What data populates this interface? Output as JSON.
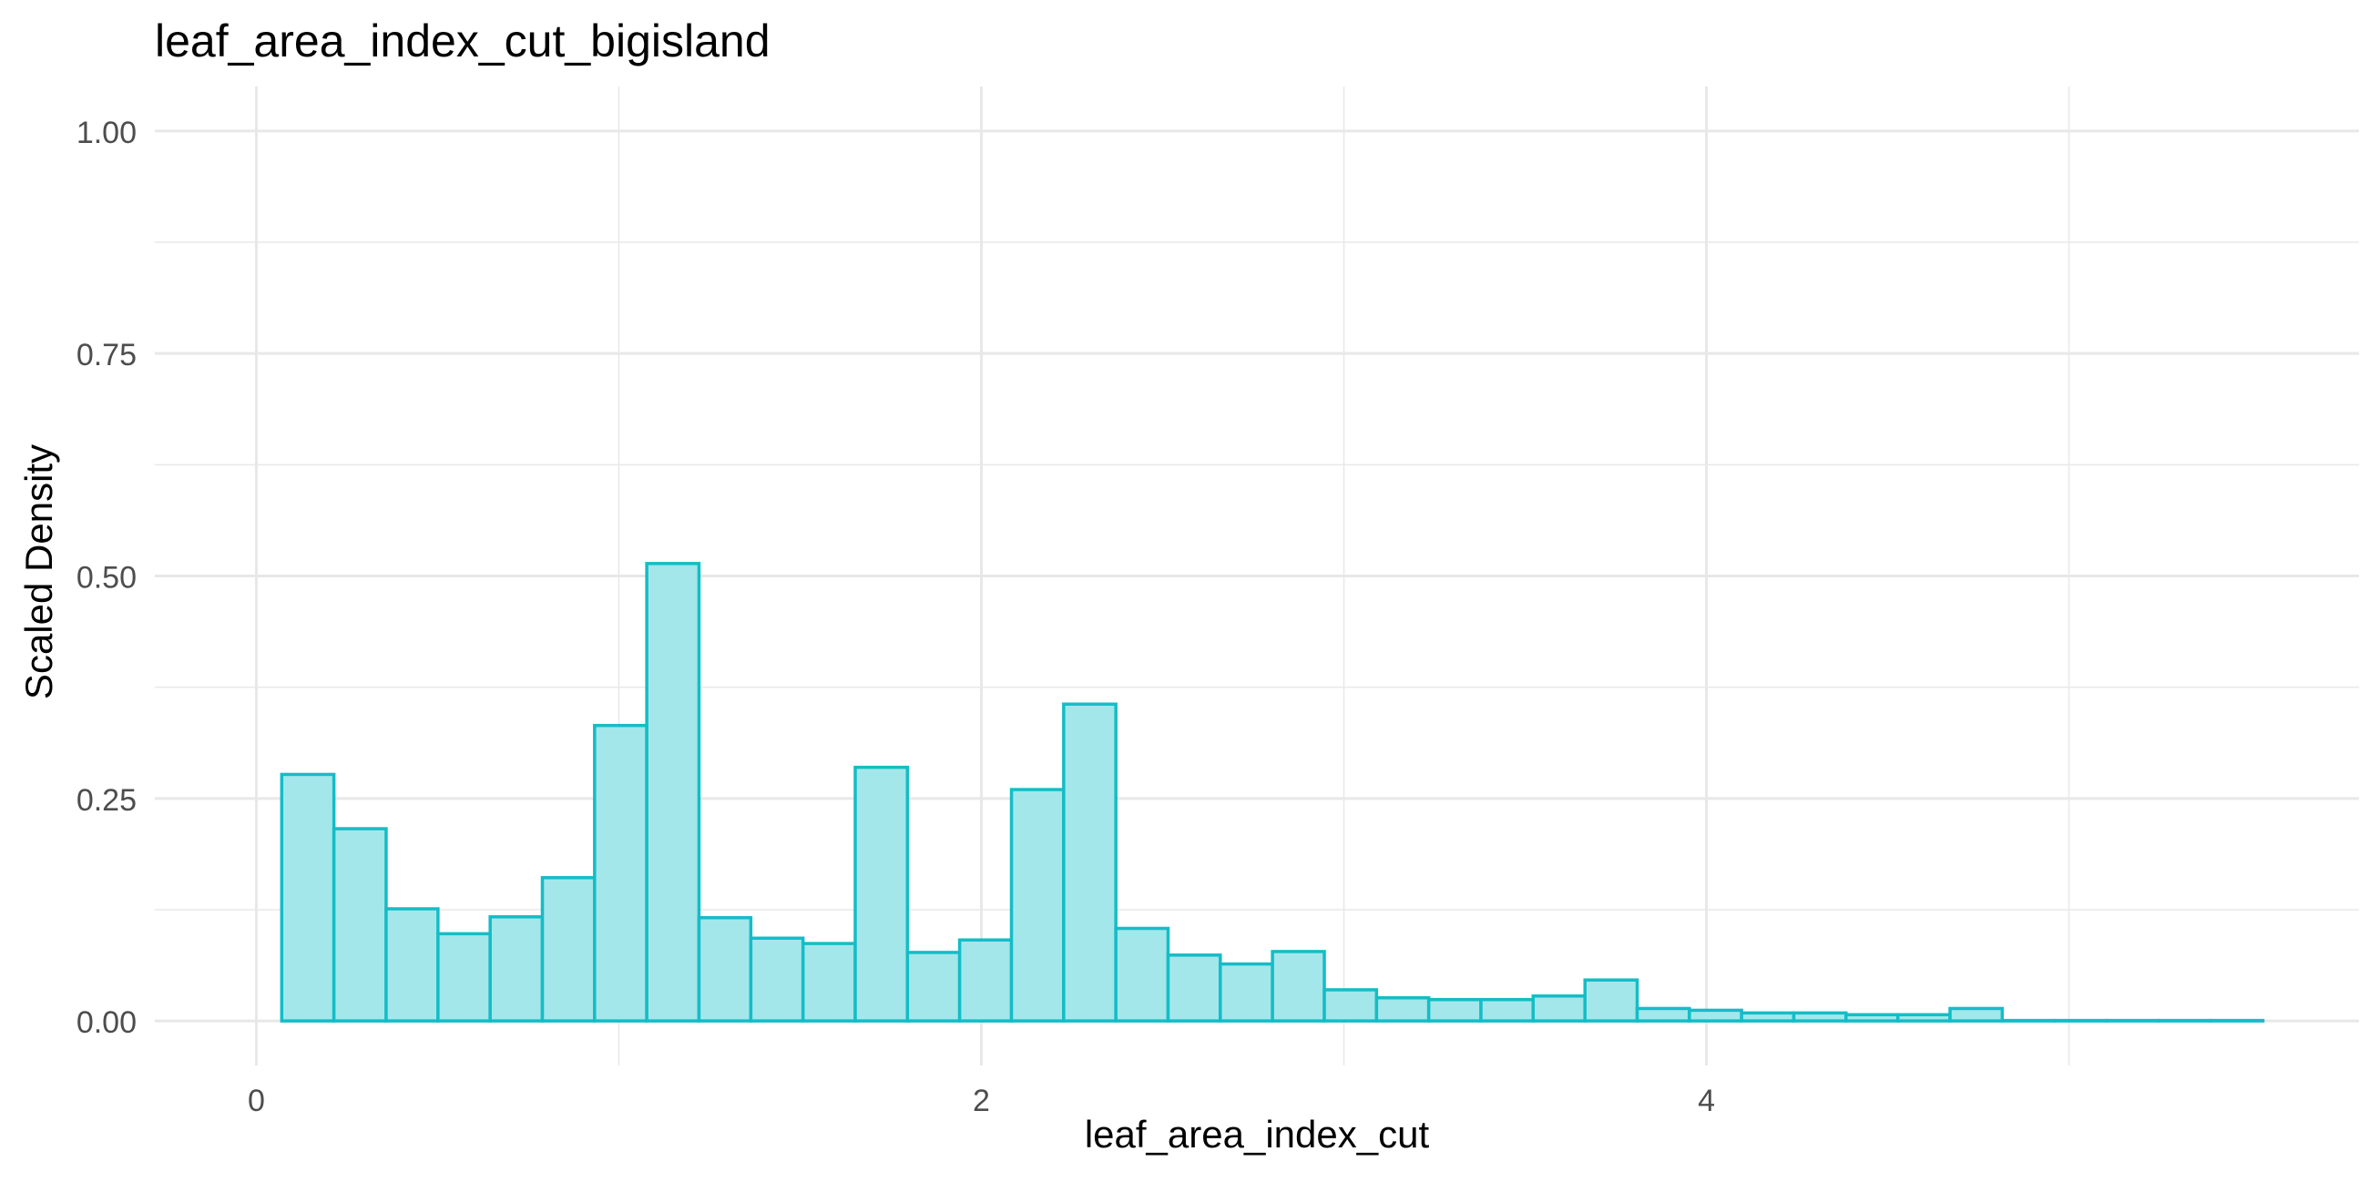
{
  "chart_data": {
    "type": "bar",
    "title": "leaf_area_index_cut_bigisland",
    "xlabel": "leaf_area_index_cut",
    "ylabel": "Scaled Density",
    "xlim": [
      -0.28,
      5.8
    ],
    "ylim": [
      -0.05,
      1.05
    ],
    "x_ticks": [
      0,
      2,
      4
    ],
    "x_tick_labels": [
      "0",
      "2",
      "4"
    ],
    "y_ticks": [
      0,
      0.25,
      0.5,
      0.75,
      1.0
    ],
    "y_tick_labels": [
      "0.00",
      "0.25",
      "0.50",
      "0.75",
      "1.00"
    ],
    "grid": true,
    "legend": "none",
    "colors": {
      "fill": "#a3e7ea",
      "stroke": "#14bdc6",
      "grid": "#e8e8e8",
      "axis_text": "#4d4d4d",
      "title": "#000000"
    },
    "bins": [
      {
        "x0": 0.07,
        "x1": 0.214,
        "value": 0.277
      },
      {
        "x0": 0.214,
        "x1": 0.358,
        "value": 0.216
      },
      {
        "x0": 0.358,
        "x1": 0.501,
        "value": 0.126
      },
      {
        "x0": 0.501,
        "x1": 0.645,
        "value": 0.098
      },
      {
        "x0": 0.645,
        "x1": 0.789,
        "value": 0.117
      },
      {
        "x0": 0.789,
        "x1": 0.933,
        "value": 0.161
      },
      {
        "x0": 0.933,
        "x1": 1.077,
        "value": 0.332
      },
      {
        "x0": 1.077,
        "x1": 1.221,
        "value": 0.514
      },
      {
        "x0": 1.221,
        "x1": 1.364,
        "value": 0.116
      },
      {
        "x0": 1.364,
        "x1": 1.508,
        "value": 0.093
      },
      {
        "x0": 1.508,
        "x1": 1.652,
        "value": 0.087
      },
      {
        "x0": 1.652,
        "x1": 1.796,
        "value": 0.285
      },
      {
        "x0": 1.796,
        "x1": 1.94,
        "value": 0.077
      },
      {
        "x0": 1.94,
        "x1": 2.083,
        "value": 0.091
      },
      {
        "x0": 2.083,
        "x1": 2.227,
        "value": 0.26
      },
      {
        "x0": 2.227,
        "x1": 2.371,
        "value": 0.356
      },
      {
        "x0": 2.371,
        "x1": 2.515,
        "value": 0.104
      },
      {
        "x0": 2.515,
        "x1": 2.659,
        "value": 0.074
      },
      {
        "x0": 2.659,
        "x1": 2.803,
        "value": 0.064
      },
      {
        "x0": 2.803,
        "x1": 2.946,
        "value": 0.078
      },
      {
        "x0": 2.946,
        "x1": 3.09,
        "value": 0.035
      },
      {
        "x0": 3.09,
        "x1": 3.234,
        "value": 0.026
      },
      {
        "x0": 3.234,
        "x1": 3.378,
        "value": 0.024
      },
      {
        "x0": 3.378,
        "x1": 3.522,
        "value": 0.024
      },
      {
        "x0": 3.522,
        "x1": 3.665,
        "value": 0.028
      },
      {
        "x0": 3.665,
        "x1": 3.809,
        "value": 0.046
      },
      {
        "x0": 3.809,
        "x1": 3.953,
        "value": 0.014
      },
      {
        "x0": 3.953,
        "x1": 4.097,
        "value": 0.012
      },
      {
        "x0": 4.097,
        "x1": 4.241,
        "value": 0.009
      },
      {
        "x0": 4.241,
        "x1": 4.385,
        "value": 0.009
      },
      {
        "x0": 4.385,
        "x1": 4.528,
        "value": 0.007
      },
      {
        "x0": 4.528,
        "x1": 4.672,
        "value": 0.007
      },
      {
        "x0": 4.672,
        "x1": 4.816,
        "value": 0.014
      },
      {
        "x0": 4.816,
        "x1": 4.96,
        "value": 0.0
      },
      {
        "x0": 4.96,
        "x1": 5.104,
        "value": 0.0
      },
      {
        "x0": 5.104,
        "x1": 5.247,
        "value": 0.0
      },
      {
        "x0": 5.247,
        "x1": 5.391,
        "value": 0.0
      },
      {
        "x0": 5.391,
        "x1": 5.535,
        "value": 0.0
      }
    ]
  }
}
